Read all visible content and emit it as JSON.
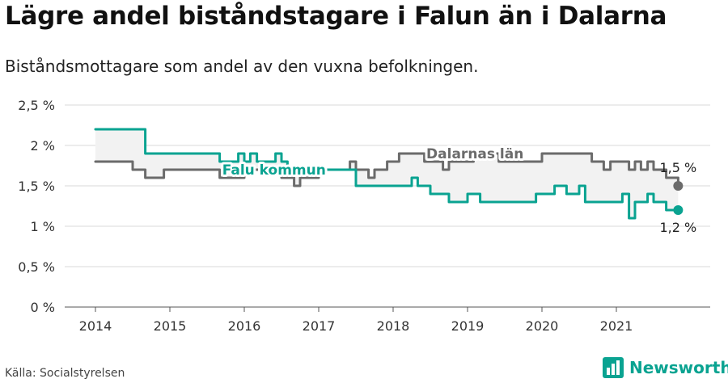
{
  "header": {
    "title": "Lägre andel biståndstagare i Falun än i Dalarna",
    "subtitle": "Biståndsmottagare som andel av den vuxna befolkningen."
  },
  "footer": {
    "source": "Källa: Socialstyrelsen",
    "brand": "Newsworthy"
  },
  "colors": {
    "falun": "#0aa391",
    "dalarna": "#6b6b6b",
    "band": "#f2f2f2",
    "grid": "#d9d9d9"
  },
  "icons": {
    "brand": "newsworthy-logo-icon"
  },
  "chart_data": {
    "type": "line",
    "ylim": [
      0,
      2.5
    ],
    "yticks": [
      0,
      0.5,
      1,
      1.5,
      2,
      2.5
    ],
    "ytick_labels": [
      "0 %",
      "0,5 %",
      "1 %",
      "1,5 %",
      "2 %",
      "2,5 %"
    ],
    "xlim": [
      2014,
      2022
    ],
    "xticks": [
      "2014",
      "2015",
      "2016",
      "2017",
      "2018",
      "2019",
      "2020",
      "2021"
    ],
    "grid": true,
    "series": [
      {
        "name": "Falu kommun",
        "key": "falun",
        "end_label": "1,2 %",
        "points": [
          [
            2014.0,
            2.2
          ],
          [
            2014.4,
            2.2
          ],
          [
            2014.67,
            1.9
          ],
          [
            2015.0,
            1.9
          ],
          [
            2015.5,
            1.9
          ],
          [
            2015.58,
            1.9
          ],
          [
            2015.67,
            1.8
          ],
          [
            2015.83,
            1.8
          ],
          [
            2015.92,
            1.9
          ],
          [
            2016.0,
            1.8
          ],
          [
            2016.08,
            1.9
          ],
          [
            2016.17,
            1.8
          ],
          [
            2016.33,
            1.8
          ],
          [
            2016.42,
            1.9
          ],
          [
            2016.5,
            1.8
          ],
          [
            2016.58,
            1.7
          ],
          [
            2016.75,
            1.7
          ],
          [
            2017.0,
            1.7
          ],
          [
            2017.33,
            1.7
          ],
          [
            2017.5,
            1.5
          ],
          [
            2018.0,
            1.5
          ],
          [
            2018.17,
            1.5
          ],
          [
            2018.25,
            1.6
          ],
          [
            2018.33,
            1.5
          ],
          [
            2018.42,
            1.5
          ],
          [
            2018.5,
            1.4
          ],
          [
            2018.67,
            1.4
          ],
          [
            2018.75,
            1.3
          ],
          [
            2018.92,
            1.3
          ],
          [
            2019.0,
            1.4
          ],
          [
            2019.08,
            1.4
          ],
          [
            2019.17,
            1.3
          ],
          [
            2019.5,
            1.3
          ],
          [
            2019.83,
            1.3
          ],
          [
            2019.92,
            1.4
          ],
          [
            2020.08,
            1.4
          ],
          [
            2020.17,
            1.5
          ],
          [
            2020.25,
            1.5
          ],
          [
            2020.33,
            1.4
          ],
          [
            2020.42,
            1.4
          ],
          [
            2020.5,
            1.5
          ],
          [
            2020.58,
            1.3
          ],
          [
            2020.92,
            1.3
          ],
          [
            2021.0,
            1.3
          ],
          [
            2021.08,
            1.4
          ],
          [
            2021.17,
            1.1
          ],
          [
            2021.25,
            1.3
          ],
          [
            2021.33,
            1.3
          ],
          [
            2021.42,
            1.4
          ],
          [
            2021.5,
            1.3
          ],
          [
            2021.58,
            1.3
          ],
          [
            2021.67,
            1.2
          ],
          [
            2021.83,
            1.2
          ]
        ]
      },
      {
        "name": "Dalarnas län",
        "key": "dalarna",
        "end_label": "1,5 %",
        "points": [
          [
            2014.0,
            1.8
          ],
          [
            2014.42,
            1.8
          ],
          [
            2014.5,
            1.7
          ],
          [
            2014.58,
            1.7
          ],
          [
            2014.67,
            1.6
          ],
          [
            2014.83,
            1.6
          ],
          [
            2014.92,
            1.7
          ],
          [
            2015.58,
            1.7
          ],
          [
            2015.67,
            1.6
          ],
          [
            2015.83,
            1.6
          ],
          [
            2016.0,
            1.7
          ],
          [
            2016.42,
            1.7
          ],
          [
            2016.5,
            1.6
          ],
          [
            2016.58,
            1.6
          ],
          [
            2016.67,
            1.5
          ],
          [
            2016.75,
            1.6
          ],
          [
            2016.92,
            1.6
          ],
          [
            2017.0,
            1.7
          ],
          [
            2017.33,
            1.7
          ],
          [
            2017.42,
            1.8
          ],
          [
            2017.5,
            1.7
          ],
          [
            2017.58,
            1.7
          ],
          [
            2017.67,
            1.6
          ],
          [
            2017.75,
            1.7
          ],
          [
            2017.83,
            1.7
          ],
          [
            2017.92,
            1.8
          ],
          [
            2018.0,
            1.8
          ],
          [
            2018.08,
            1.9
          ],
          [
            2018.33,
            1.9
          ],
          [
            2018.42,
            1.8
          ],
          [
            2018.58,
            1.8
          ],
          [
            2018.67,
            1.7
          ],
          [
            2018.75,
            1.8
          ],
          [
            2019.0,
            1.8
          ],
          [
            2019.08,
            1.9
          ],
          [
            2019.33,
            1.9
          ],
          [
            2019.42,
            1.8
          ],
          [
            2019.92,
            1.8
          ],
          [
            2020.0,
            1.9
          ],
          [
            2020.58,
            1.9
          ],
          [
            2020.67,
            1.8
          ],
          [
            2020.75,
            1.8
          ],
          [
            2020.83,
            1.7
          ],
          [
            2020.92,
            1.8
          ],
          [
            2021.08,
            1.8
          ],
          [
            2021.17,
            1.7
          ],
          [
            2021.25,
            1.8
          ],
          [
            2021.33,
            1.7
          ],
          [
            2021.42,
            1.8
          ],
          [
            2021.5,
            1.7
          ],
          [
            2021.58,
            1.7
          ],
          [
            2021.67,
            1.6
          ],
          [
            2021.75,
            1.6
          ],
          [
            2021.83,
            1.5
          ]
        ]
      }
    ],
    "annotations": [
      {
        "series": "falun",
        "text": "Falu kommun",
        "at": [
          2016.4,
          1.7
        ]
      },
      {
        "series": "dalarna",
        "text": "Dalarnas län",
        "at": [
          2019.1,
          1.9
        ]
      }
    ]
  }
}
